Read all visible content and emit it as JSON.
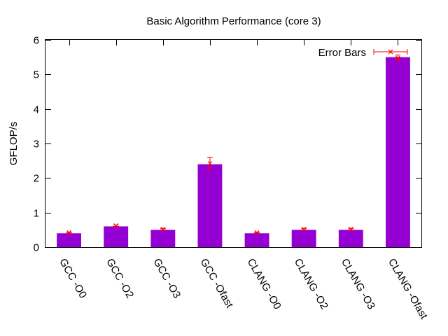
{
  "chart_data": {
    "type": "bar",
    "title": "Basic Algorithm Performance (core 3)",
    "xlabel": "",
    "ylabel": "GFLOP/s",
    "ylim": [
      0,
      6
    ],
    "yticks": [
      0,
      1,
      2,
      3,
      4,
      5,
      6
    ],
    "categories": [
      "GCC -O0",
      "GCC -O2",
      "GCC -O3",
      "GCC -Ofast",
      "CLANG -O0",
      "CLANG -O2",
      "CLANG -O3",
      "CLANG -Ofast"
    ],
    "values": [
      0.4,
      0.6,
      0.5,
      2.4,
      0.4,
      0.5,
      0.5,
      5.5
    ],
    "error_points": [
      0.42,
      0.62,
      0.52,
      2.42,
      0.42,
      0.52,
      0.52,
      5.47
    ],
    "error_low": [
      0.41,
      0.6,
      0.5,
      2.2,
      0.41,
      0.5,
      0.5,
      5.4
    ],
    "error_high": [
      0.43,
      0.64,
      0.54,
      2.6,
      0.43,
      0.54,
      0.54,
      5.56
    ],
    "bar_color": "#9400d3",
    "error_color": "#ff0000",
    "legend": {
      "label": "Error Bars",
      "placement": "top-right"
    },
    "grid": false
  }
}
